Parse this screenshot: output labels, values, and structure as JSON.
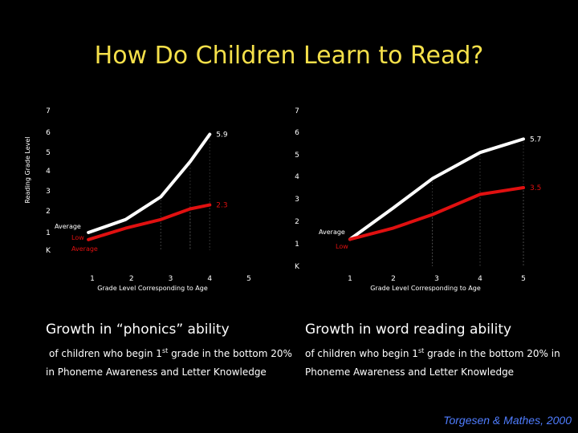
{
  "page": {
    "title": "How Do Children Learn to Read?",
    "source": "Torgesen & Mathes, 2000"
  },
  "colors": {
    "background": "#000000",
    "title": "#f5e04a",
    "average_line": "#ffffff",
    "low_line": "#e01010",
    "source": "#4f7dff"
  },
  "captions": [
    {
      "heading": "Growth in “phonics” ability",
      "body_pre": "of children who begin 1",
      "body_sup": "st",
      "body_post": " grade in the bottom 20% in Phoneme Awareness and Letter Knowledge"
    },
    {
      "heading": "Growth in word reading ability",
      "body_pre": "of children who begin 1",
      "body_sup": "st",
      "body_post": " grade in the bottom 20% in Phoneme Awareness and Letter Knowledge"
    }
  ],
  "chart_data": [
    {
      "type": "line",
      "xlabel": "Grade Level Corresponding to Age",
      "ylabel": "Reading Grade Level",
      "x_ticks": [
        "1",
        "2",
        "3",
        "4",
        "5"
      ],
      "y_ticks": [
        "K",
        "1",
        "2",
        "3",
        "4",
        "5",
        "6",
        "7"
      ],
      "xlim": [
        1,
        5
      ],
      "ylim": [
        0,
        7
      ],
      "grid": false,
      "series": [
        {
          "name": "Average",
          "color": "#ffffff",
          "x": [
            0.9,
            1.85,
            2.75,
            3.5,
            4.0
          ],
          "y": [
            1.0,
            1.6,
            2.7,
            4.5,
            5.9
          ],
          "end_label": "5.9"
        },
        {
          "name": "Low Average",
          "color": "#e01010",
          "x": [
            0.9,
            1.85,
            2.75,
            3.5,
            4.0
          ],
          "y": [
            0.6,
            1.2,
            1.6,
            2.1,
            2.3
          ],
          "end_label": "2.3"
        }
      ],
      "labels": {
        "average": "Average",
        "low_line1": "Low",
        "low_line2": "Average"
      }
    },
    {
      "type": "line",
      "xlabel": "Grade Level Corresponding to Age",
      "ylabel": "",
      "x_ticks": [
        "1",
        "2",
        "3",
        "4",
        "5"
      ],
      "y_ticks": [
        "K",
        "1",
        "2",
        "3",
        "4",
        "5",
        "6",
        "7"
      ],
      "xlim": [
        1,
        5
      ],
      "ylim": [
        0,
        7
      ],
      "grid": false,
      "series": [
        {
          "name": "Average",
          "color": "#ffffff",
          "x": [
            1.0,
            2.0,
            2.9,
            4.0,
            5.0
          ],
          "y": [
            1.2,
            2.6,
            3.9,
            5.1,
            5.7
          ],
          "end_label": "5.7"
        },
        {
          "name": "Low",
          "color": "#e01010",
          "x": [
            1.0,
            2.0,
            2.9,
            4.0,
            5.0
          ],
          "y": [
            1.2,
            1.7,
            2.3,
            3.2,
            3.5
          ],
          "end_label": "3.5"
        }
      ],
      "labels": {
        "average": "Average",
        "low": "Low"
      }
    }
  ]
}
